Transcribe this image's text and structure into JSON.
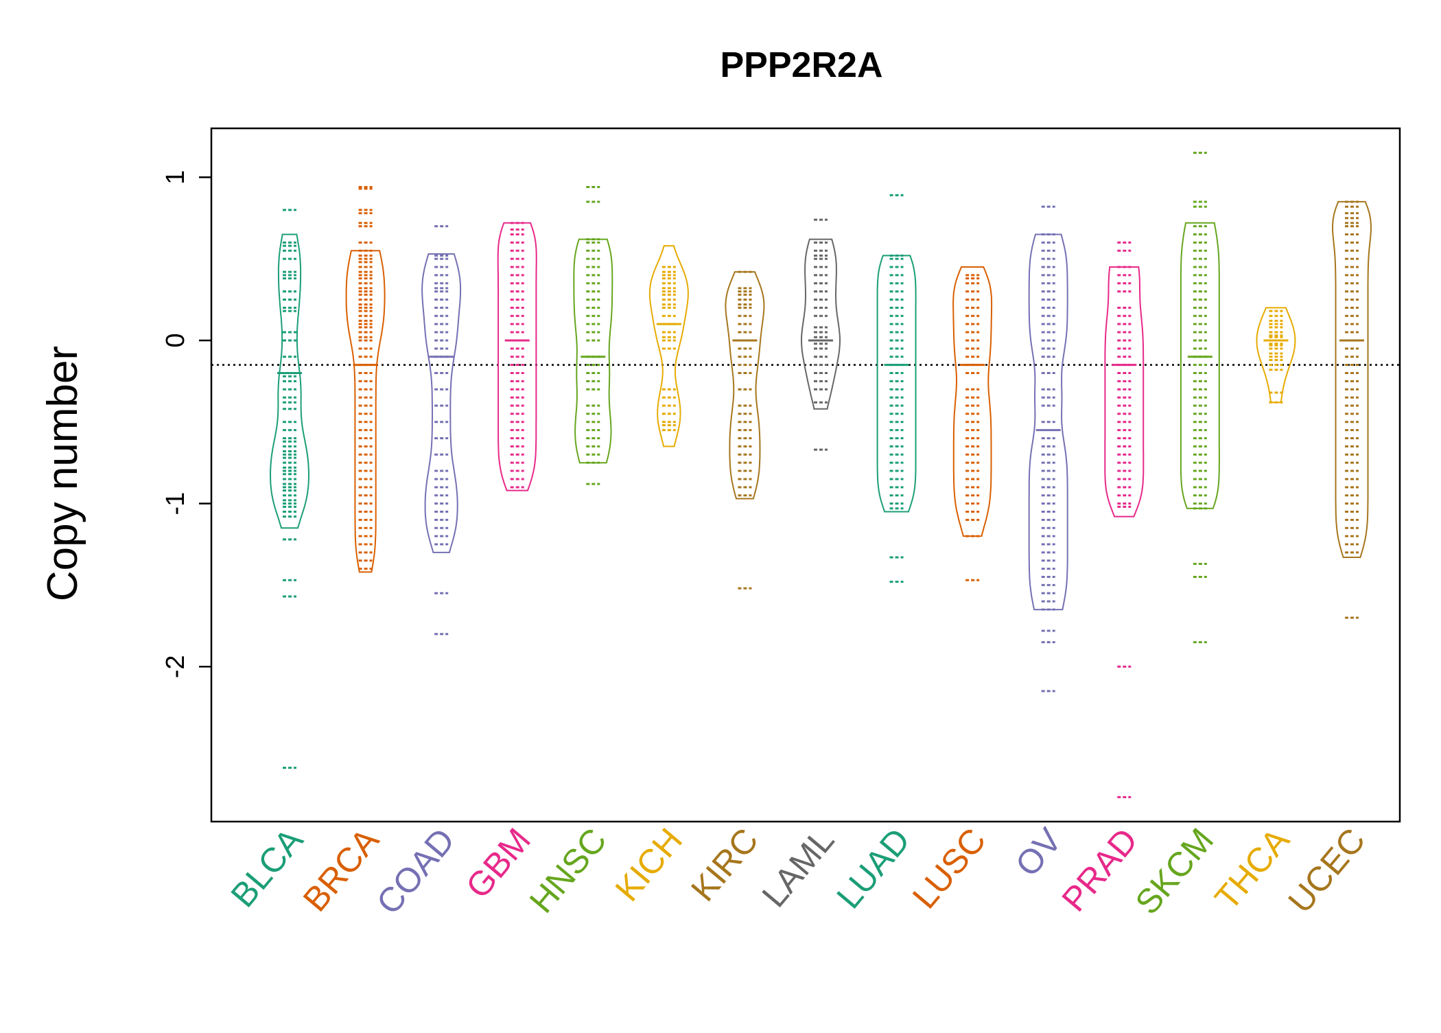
{
  "chart_data": {
    "type": "beanplot",
    "title": "PPP2R2A",
    "xlabel": "",
    "ylabel": "Copy number",
    "ylim": [
      -2.95,
      1.3
    ],
    "yticks": [
      -2,
      -1,
      0,
      1
    ],
    "reference_line": {
      "y": -0.15,
      "style": "dotted"
    },
    "grid": false,
    "legend": "none",
    "categories": [
      "BLCA",
      "BRCA",
      "COAD",
      "GBM",
      "HNSC",
      "KICH",
      "KIRC",
      "LAML",
      "LUAD",
      "LUSC",
      "OV",
      "PRAD",
      "SKCM",
      "THCA",
      "UCEC"
    ],
    "colors": [
      "#1B9E77",
      "#D95F02",
      "#7570B3",
      "#E7298A",
      "#66A61E",
      "#E6AB02",
      "#A6761D",
      "#666666",
      "#1B9E77",
      "#D95F02",
      "#7570B3",
      "#E7298A",
      "#66A61E",
      "#E6AB02",
      "#A6761D"
    ],
    "series": [
      {
        "name": "BLCA",
        "min": -1.15,
        "max": 0.65,
        "median": -0.2,
        "points": [
          0.8,
          0.6,
          0.58,
          0.55,
          0.5,
          0.42,
          0.4,
          0.38,
          0.3,
          0.25,
          0.2,
          0.18,
          0.05,
          0,
          -0.1,
          -0.2,
          -0.22,
          -0.25,
          -0.3,
          -0.35,
          -0.38,
          -0.42,
          -0.5,
          -0.55,
          -0.6,
          -0.62,
          -0.65,
          -0.68,
          -0.7,
          -0.72,
          -0.75,
          -0.78,
          -0.8,
          -0.82,
          -0.85,
          -0.88,
          -0.9,
          -0.92,
          -0.95,
          -0.98,
          -1.0,
          -1.02,
          -1.05,
          -1.08,
          -1.22,
          -1.47,
          -1.57,
          -2.62
        ]
      },
      {
        "name": "BRCA",
        "min": -1.42,
        "max": 0.55,
        "median": -0.15,
        "points": [
          0.94,
          0.93,
          0.8,
          0.78,
          0.72,
          0.7,
          0.6,
          0.55,
          0.52,
          0.5,
          0.48,
          0.45,
          0.42,
          0.4,
          0.38,
          0.35,
          0.32,
          0.3,
          0.28,
          0.25,
          0.22,
          0.2,
          0.18,
          0.15,
          0.12,
          0.1,
          0.08,
          0.05,
          0.02,
          0,
          -0.05,
          -0.1,
          -0.15,
          -0.2,
          -0.25,
          -0.3,
          -0.35,
          -0.4,
          -0.45,
          -0.5,
          -0.55,
          -0.6,
          -0.65,
          -0.7,
          -0.75,
          -0.8,
          -0.85,
          -0.9,
          -0.95,
          -1.0,
          -1.05,
          -1.1,
          -1.15,
          -1.2,
          -1.25,
          -1.3,
          -1.35,
          -1.4
        ]
      },
      {
        "name": "COAD",
        "min": -1.3,
        "max": 0.53,
        "median": -0.1,
        "points": [
          0.7,
          0.52,
          0.5,
          0.45,
          0.4,
          0.35,
          0.32,
          0.3,
          0.25,
          0.2,
          0.15,
          0.1,
          0.05,
          0,
          -0.05,
          -0.1,
          -0.2,
          -0.3,
          -0.4,
          -0.5,
          -0.6,
          -0.7,
          -0.8,
          -0.85,
          -0.9,
          -0.95,
          -1.0,
          -1.05,
          -1.1,
          -1.15,
          -1.2,
          -1.25,
          -1.55,
          -1.8
        ]
      },
      {
        "name": "GBM",
        "min": -0.92,
        "max": 0.72,
        "median": 0.0,
        "points": [
          0.72,
          0.68,
          0.65,
          0.6,
          0.55,
          0.5,
          0.45,
          0.4,
          0.35,
          0.3,
          0.25,
          0.2,
          0.15,
          0.1,
          0.05,
          0,
          -0.05,
          -0.1,
          -0.15,
          -0.2,
          -0.25,
          -0.3,
          -0.35,
          -0.4,
          -0.45,
          -0.5,
          -0.55,
          -0.6,
          -0.65,
          -0.7,
          -0.75,
          -0.8,
          -0.85,
          -0.9
        ]
      },
      {
        "name": "HNSC",
        "min": -0.75,
        "max": 0.62,
        "median": -0.1,
        "points": [
          0.94,
          0.85,
          0.62,
          0.6,
          0.55,
          0.5,
          0.45,
          0.4,
          0.35,
          0.3,
          0.25,
          0.2,
          0.15,
          0.1,
          0.05,
          0,
          -0.1,
          -0.15,
          -0.2,
          -0.25,
          -0.3,
          -0.4,
          -0.45,
          -0.5,
          -0.55,
          -0.6,
          -0.65,
          -0.7,
          -0.75,
          -0.88
        ]
      },
      {
        "name": "KICH",
        "min": -0.65,
        "max": 0.58,
        "median": 0.1,
        "points": [
          0.45,
          0.42,
          0.4,
          0.38,
          0.35,
          0.32,
          0.3,
          0.28,
          0.25,
          0.22,
          0.2,
          0.15,
          0.1,
          0.05,
          0.02,
          0,
          -0.05,
          -0.3,
          -0.35,
          -0.4,
          -0.45,
          -0.5,
          -0.52,
          -0.55
        ]
      },
      {
        "name": "KIRC",
        "min": -0.97,
        "max": 0.42,
        "median": 0.0,
        "points": [
          0.42,
          0.32,
          0.3,
          0.28,
          0.25,
          0.22,
          0.2,
          0.15,
          0.1,
          0.05,
          0,
          -0.05,
          -0.1,
          -0.15,
          -0.2,
          -0.3,
          -0.4,
          -0.45,
          -0.5,
          -0.55,
          -0.6,
          -0.65,
          -0.7,
          -0.75,
          -0.8,
          -0.85,
          -0.9,
          -0.95,
          -1.52
        ]
      },
      {
        "name": "LAML",
        "min": -0.42,
        "max": 0.62,
        "median": 0.0,
        "points": [
          0.74,
          0.6,
          0.55,
          0.52,
          0.5,
          0.45,
          0.4,
          0.35,
          0.3,
          0.25,
          0.2,
          0.15,
          0.08,
          0.05,
          0.02,
          0,
          -0.02,
          -0.05,
          -0.1,
          -0.15,
          -0.2,
          -0.25,
          -0.3,
          -0.38,
          -0.67
        ]
      },
      {
        "name": "LUAD",
        "min": -1.05,
        "max": 0.52,
        "median": -0.15,
        "points": [
          0.89,
          0.52,
          0.5,
          0.45,
          0.4,
          0.35,
          0.3,
          0.25,
          0.2,
          0.15,
          0.1,
          0.05,
          0,
          -0.05,
          -0.1,
          -0.15,
          -0.2,
          -0.25,
          -0.3,
          -0.35,
          -0.4,
          -0.45,
          -0.5,
          -0.55,
          -0.6,
          -0.65,
          -0.7,
          -0.75,
          -0.8,
          -0.85,
          -0.9,
          -0.95,
          -1.0,
          -1.03,
          -1.33,
          -1.48
        ]
      },
      {
        "name": "LUSC",
        "min": -1.2,
        "max": 0.45,
        "median": -0.15,
        "points": [
          0.4,
          0.38,
          0.35,
          0.3,
          0.25,
          0.2,
          0.15,
          0.1,
          0.05,
          0,
          -0.05,
          -0.1,
          -0.15,
          -0.2,
          -0.3,
          -0.35,
          -0.4,
          -0.45,
          -0.5,
          -0.55,
          -0.6,
          -0.65,
          -0.7,
          -0.75,
          -0.8,
          -0.85,
          -0.9,
          -0.95,
          -1.0,
          -1.05,
          -1.1,
          -1.2,
          -1.47
        ]
      },
      {
        "name": "OV",
        "min": -1.65,
        "max": 0.65,
        "median": -0.55,
        "points": [
          0.82,
          0.65,
          0.6,
          0.55,
          0.5,
          0.45,
          0.4,
          0.35,
          0.3,
          0.25,
          0.2,
          0.15,
          0.1,
          0.05,
          0,
          -0.05,
          -0.1,
          -0.2,
          -0.3,
          -0.35,
          -0.4,
          -0.5,
          -0.6,
          -0.65,
          -0.7,
          -0.75,
          -0.8,
          -0.85,
          -0.9,
          -0.95,
          -1.0,
          -1.05,
          -1.1,
          -1.15,
          -1.2,
          -1.25,
          -1.3,
          -1.35,
          -1.4,
          -1.45,
          -1.5,
          -1.55,
          -1.6,
          -1.65,
          -1.78,
          -1.85,
          -2.15
        ]
      },
      {
        "name": "PRAD",
        "min": -1.08,
        "max": 0.45,
        "median": -0.15,
        "points": [
          0.6,
          0.55,
          0.45,
          0.4,
          0.35,
          0.3,
          0.2,
          0.15,
          0.1,
          0.05,
          0,
          -0.05,
          -0.1,
          -0.15,
          -0.2,
          -0.25,
          -0.3,
          -0.35,
          -0.4,
          -0.45,
          -0.5,
          -0.55,
          -0.6,
          -0.65,
          -0.7,
          -0.75,
          -0.8,
          -0.85,
          -0.9,
          -0.95,
          -1.0,
          -1.02,
          -2.0,
          -2.8
        ]
      },
      {
        "name": "SKCM",
        "min": -1.03,
        "max": 0.72,
        "median": -0.1,
        "points": [
          1.15,
          0.85,
          0.82,
          0.7,
          0.65,
          0.6,
          0.55,
          0.5,
          0.45,
          0.4,
          0.35,
          0.3,
          0.25,
          0.2,
          0.15,
          0.1,
          0.05,
          0,
          -0.05,
          -0.1,
          -0.15,
          -0.2,
          -0.25,
          -0.3,
          -0.35,
          -0.4,
          -0.45,
          -0.5,
          -0.55,
          -0.6,
          -0.65,
          -0.7,
          -0.75,
          -0.8,
          -0.85,
          -0.9,
          -0.95,
          -1.0,
          -1.03,
          -1.37,
          -1.45,
          -1.85
        ]
      },
      {
        "name": "THCA",
        "min": -0.38,
        "max": 0.2,
        "median": 0.0,
        "points": [
          0.18,
          0.15,
          0.12,
          0.1,
          0.08,
          0.05,
          0.03,
          0.02,
          0,
          -0.02,
          -0.03,
          -0.05,
          -0.08,
          -0.1,
          -0.12,
          -0.15,
          -0.18,
          -0.32,
          -0.38
        ]
      },
      {
        "name": "UCEC",
        "min": -1.33,
        "max": 0.85,
        "median": 0.0,
        "points": [
          0.85,
          0.82,
          0.78,
          0.75,
          0.72,
          0.7,
          0.65,
          0.6,
          0.55,
          0.5,
          0.45,
          0.4,
          0.35,
          0.3,
          0.25,
          0.2,
          0.15,
          0.1,
          0.05,
          0,
          -0.05,
          -0.1,
          -0.15,
          -0.2,
          -0.25,
          -0.3,
          -0.35,
          -0.4,
          -0.45,
          -0.5,
          -0.55,
          -0.6,
          -0.65,
          -0.7,
          -0.75,
          -0.8,
          -0.85,
          -0.9,
          -0.95,
          -1.0,
          -1.05,
          -1.1,
          -1.15,
          -1.2,
          -1.25,
          -1.3,
          -1.7
        ]
      }
    ]
  }
}
